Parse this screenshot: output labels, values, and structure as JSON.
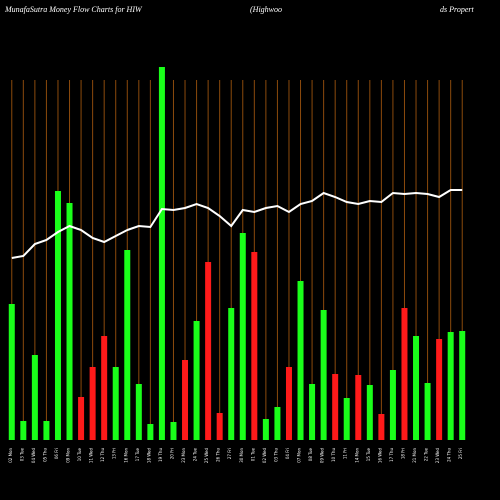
{
  "chart_data": {
    "type": "bar",
    "title": "MunafaSutra  Money Flow  Charts for HIW",
    "subtitle": "(Highwoo",
    "subtitle2": "ds Propert",
    "categories": [
      "02 Mon",
      "03 Tue",
      "04 Wed",
      "05 Thu",
      "06 Fri",
      "09 Mon",
      "10 Tue",
      "11 Wed",
      "12 Thu",
      "13 Fri",
      "16 Mon",
      "17 Tue",
      "18 Wed",
      "19 Thu",
      "20 Fri",
      "23 Mon",
      "24 Tue",
      "25 Wed",
      "26 Thu",
      "27 Fri",
      "30 Mon",
      "01 Tue",
      "02 Wed",
      "03 Thu",
      "04 Fri",
      "07 Mon",
      "08 Tue",
      "09 Wed",
      "10 Thu",
      "11 Fri",
      "14 Mon",
      "15 Tue",
      "16 Wed",
      "17 Thu",
      "18 Fri",
      "21 Mon",
      "22 Tue",
      "23 Wed",
      "24 Thu",
      "25 Fri"
    ],
    "values": [
      136,
      19,
      85,
      19,
      249,
      237,
      43,
      73,
      104,
      73,
      190,
      56,
      16,
      373,
      18,
      80,
      119,
      178,
      27,
      132,
      207,
      188,
      21,
      33,
      73,
      159,
      56,
      130,
      66,
      42,
      65,
      55,
      26,
      70,
      132,
      104,
      57,
      101,
      108,
      109
    ],
    "colors": [
      "#1aff1a",
      "#1aff1a",
      "#1aff1a",
      "#1aff1a",
      "#1aff1a",
      "#1aff1a",
      "#ff1a1a",
      "#ff1a1a",
      "#ff1a1a",
      "#1aff1a",
      "#1aff1a",
      "#1aff1a",
      "#1aff1a",
      "#1aff1a",
      "#1aff1a",
      "#ff1a1a",
      "#1aff1a",
      "#ff1a1a",
      "#ff1a1a",
      "#1aff1a",
      "#1aff1a",
      "#ff1a1a",
      "#1aff1a",
      "#1aff1a",
      "#ff1a1a",
      "#1aff1a",
      "#1aff1a",
      "#1aff1a",
      "#ff1a1a",
      "#1aff1a",
      "#ff1a1a",
      "#1aff1a",
      "#ff1a1a",
      "#1aff1a",
      "#ff1a1a",
      "#1aff1a",
      "#1aff1a",
      "#ff1a1a",
      "#1aff1a",
      "#1aff1a"
    ],
    "line_values": [
      182,
      184,
      196,
      200,
      208,
      214,
      210,
      202,
      198,
      204,
      210,
      214,
      213,
      231,
      230,
      232,
      236,
      232,
      224,
      214,
      230,
      228,
      232,
      234,
      228,
      236,
      239,
      247,
      243,
      238,
      236,
      239,
      238,
      247,
      246,
      247,
      246,
      243,
      250,
      250
    ],
    "line_color": "#ffffff",
    "grid_color": "#8b4a0c",
    "ylim": [
      0,
      375
    ]
  }
}
